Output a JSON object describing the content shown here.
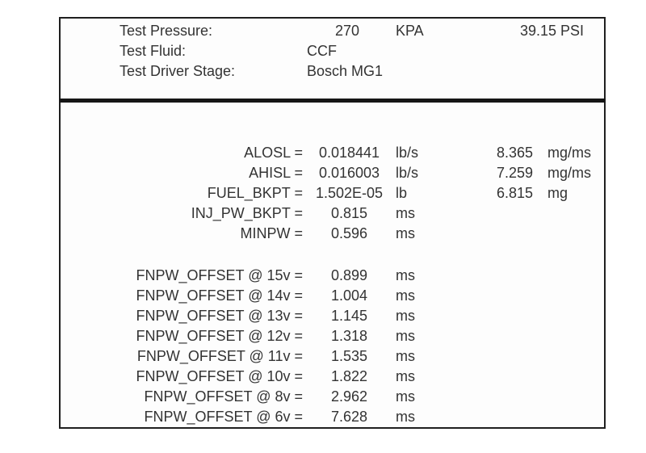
{
  "header": {
    "rows": [
      {
        "label": "Test Pressure:",
        "value": "270",
        "unit": "KPA",
        "value2": "39.15 PSI"
      },
      {
        "label": "Test Fluid:",
        "value": "CCF",
        "unit": "",
        "value2": ""
      },
      {
        "label": "Test Driver Stage:",
        "value": "Bosch MG1",
        "unit": "",
        "value2": ""
      }
    ]
  },
  "parameters": [
    {
      "label": "ALOSL =",
      "value": "0.018441",
      "unit": "lb/s",
      "value2": "8.365",
      "unit2": "mg/ms"
    },
    {
      "label": "AHISL =",
      "value": "0.016003",
      "unit": "lb/s",
      "value2": "7.259",
      "unit2": "mg/ms"
    },
    {
      "label": "FUEL_BKPT =",
      "value": "1.502E-05",
      "unit": "lb",
      "value2": "6.815",
      "unit2": "mg"
    },
    {
      "label": "INJ_PW_BKPT =",
      "value": "0.815",
      "unit": "ms",
      "value2": "",
      "unit2": ""
    },
    {
      "label": "MINPW =",
      "value": "0.596",
      "unit": "ms",
      "value2": "",
      "unit2": ""
    }
  ],
  "offsets": [
    {
      "label": "FNPW_OFFSET @ 15v =",
      "value": "0.899",
      "unit": "ms"
    },
    {
      "label": "FNPW_OFFSET @ 14v =",
      "value": "1.004",
      "unit": "ms"
    },
    {
      "label": "FNPW_OFFSET @ 13v =",
      "value": "1.145",
      "unit": "ms"
    },
    {
      "label": "FNPW_OFFSET @ 12v =",
      "value": "1.318",
      "unit": "ms"
    },
    {
      "label": "FNPW_OFFSET @ 11v =",
      "value": "1.535",
      "unit": "ms"
    },
    {
      "label": "FNPW_OFFSET @ 10v =",
      "value": "1.822",
      "unit": "ms"
    },
    {
      "label": "FNPW_OFFSET @ 8v =",
      "value": "2.962",
      "unit": "ms"
    },
    {
      "label": "FNPW_OFFSET @ 6v =",
      "value": "7.628",
      "unit": "ms"
    }
  ],
  "colors": {
    "text": "#333333",
    "border": "#1f1f1f",
    "background": "#ffffff"
  }
}
